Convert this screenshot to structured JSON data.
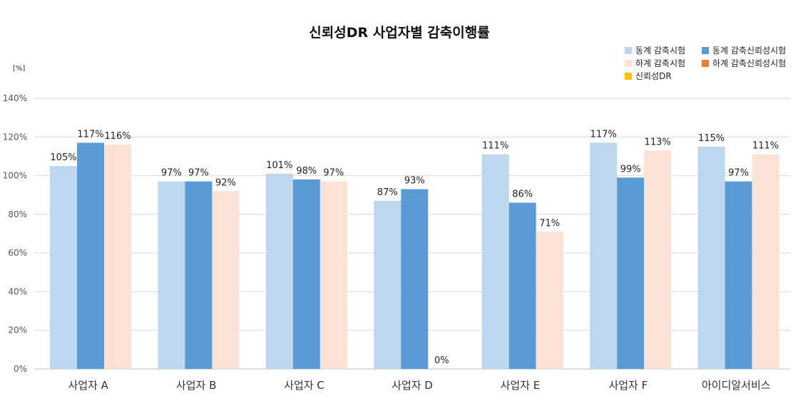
{
  "chart_data": {
    "type": "bar",
    "title": "신뢰성DR 사업자별 감축이행률",
    "unit_label": "[%]",
    "categories": [
      "사업자 A",
      "사업자 B",
      "사업자 C",
      "사업자 D",
      "사업자 E",
      "사업자 F",
      "아이디알서비스"
    ],
    "series": [
      {
        "name": "동계 감축시험",
        "color": "#bdd7ee",
        "values": [
          105,
          97,
          101,
          87,
          111,
          117,
          115
        ],
        "labels": [
          "105%",
          "97%",
          "101%",
          "87%",
          "111%",
          "117%",
          "115%"
        ]
      },
      {
        "name": "동계 감축신뢰성시험",
        "color": "#5b9bd5",
        "values": [
          117,
          97,
          98,
          93,
          86,
          99,
          97
        ],
        "labels": [
          "117%",
          "97%",
          "98%",
          "93%",
          "86%",
          "99%",
          "97%"
        ]
      },
      {
        "name": "하계 감축시험",
        "color": "#fbe2d5",
        "values": [
          116,
          92,
          97,
          0,
          71,
          113,
          111
        ],
        "labels": [
          "116%",
          "92%",
          "97%",
          "0%",
          "71%",
          "113%",
          "111%"
        ]
      },
      {
        "name": "하계 감축신뢰성시험",
        "color": "#ed7d31",
        "values": [
          null,
          null,
          null,
          null,
          null,
          null,
          null
        ]
      },
      {
        "name": "신뢰성DR",
        "color": "#ffc000",
        "values": [
          null,
          null,
          null,
          null,
          null,
          null,
          null
        ]
      }
    ],
    "yticks": [
      "0%",
      "20%",
      "40%",
      "60%",
      "80%",
      "100%",
      "120%",
      "140%"
    ],
    "ylim": [
      0,
      140
    ],
    "grid": true,
    "legend_position": "top-right"
  }
}
